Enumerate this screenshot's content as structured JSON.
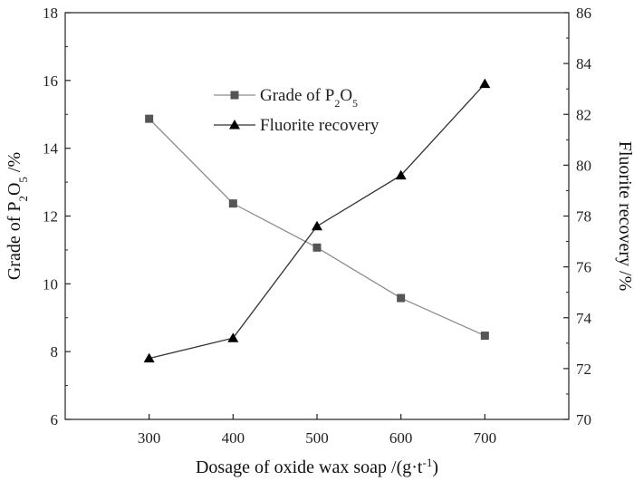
{
  "chart_data": {
    "type": "line",
    "x": [
      300,
      400,
      500,
      600,
      700
    ],
    "xlim": [
      200,
      800
    ],
    "x_ticks": [
      "300",
      "400",
      "500",
      "600",
      "700"
    ],
    "xlabel": {
      "text": "Dosage of oxide wax soap /(g·t",
      "sup": "-1",
      "end": ")"
    },
    "ylabel_left": {
      "prefix": "Grade of P",
      "sub1": "2",
      "mid": "O",
      "sub2": "5",
      "suffix": " /%"
    },
    "ylabel_right": "Fluorite recovery /%",
    "ylim_left": [
      6,
      18
    ],
    "ylim_right": [
      70,
      86
    ],
    "y_ticks_left": [
      "6",
      "8",
      "10",
      "12",
      "14",
      "16",
      "18"
    ],
    "y_ticks_right": [
      "70",
      "72",
      "74",
      "76",
      "78",
      "80",
      "82",
      "84",
      "86"
    ],
    "grid": false,
    "legend_position": "top-center",
    "series": [
      {
        "name": {
          "prefix": "Grade of P",
          "sub1": "2",
          "mid": "O",
          "sub2": "5"
        },
        "axis": "left",
        "marker": "square",
        "line_color": "#8c8c8c",
        "marker_color": "#555555",
        "values": [
          14.87,
          12.37,
          11.07,
          9.58,
          8.47
        ]
      },
      {
        "name": "Fluorite recovery",
        "axis": "right",
        "marker": "triangle",
        "line_color": "#333333",
        "marker_color": "#000000",
        "values": [
          72.4,
          73.2,
          77.6,
          79.6,
          83.2
        ]
      }
    ]
  }
}
